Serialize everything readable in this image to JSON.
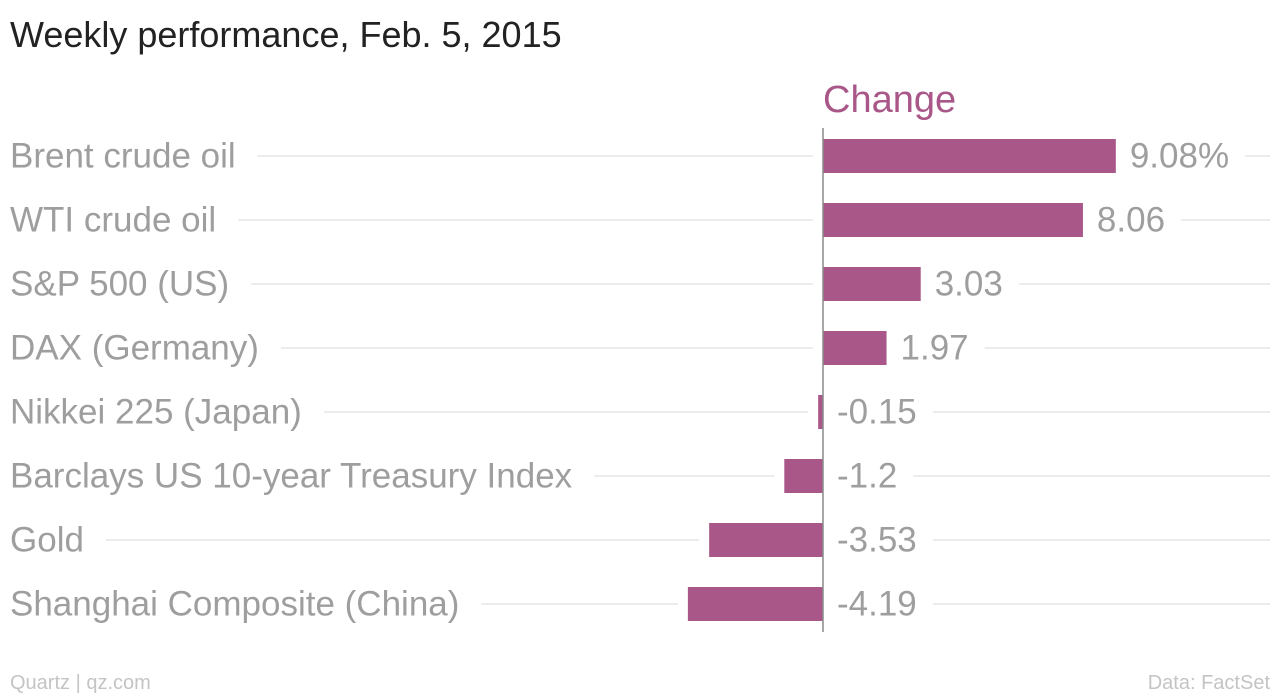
{
  "chart_data": {
    "type": "bar",
    "orientation": "horizontal",
    "title": "Weekly performance, Feb. 5, 2015",
    "series": [
      {
        "name": "Change",
        "color": "#a85788",
        "values": [
          9.08,
          8.06,
          3.03,
          1.97,
          -0.15,
          -1.2,
          -3.53,
          -4.19
        ],
        "value_labels": [
          "9.08%",
          "8.06",
          "3.03",
          "1.97",
          "-0.15",
          "-1.2",
          "-3.53",
          "-4.19"
        ]
      }
    ],
    "categories": [
      "Brent crude oil",
      "WTI crude oil",
      "S&P 500 (US)",
      "DAX (Germany)",
      "Nikkei 225 (Japan)",
      "Barclays US 10-year Treasury Index",
      "Gold",
      "Shanghai Composite (China)"
    ],
    "xlim": [
      -4.19,
      9.08
    ],
    "grid": true,
    "legend": "top"
  },
  "footer": {
    "source": "Quartz | qz.com",
    "data": "Data: FactSet"
  }
}
